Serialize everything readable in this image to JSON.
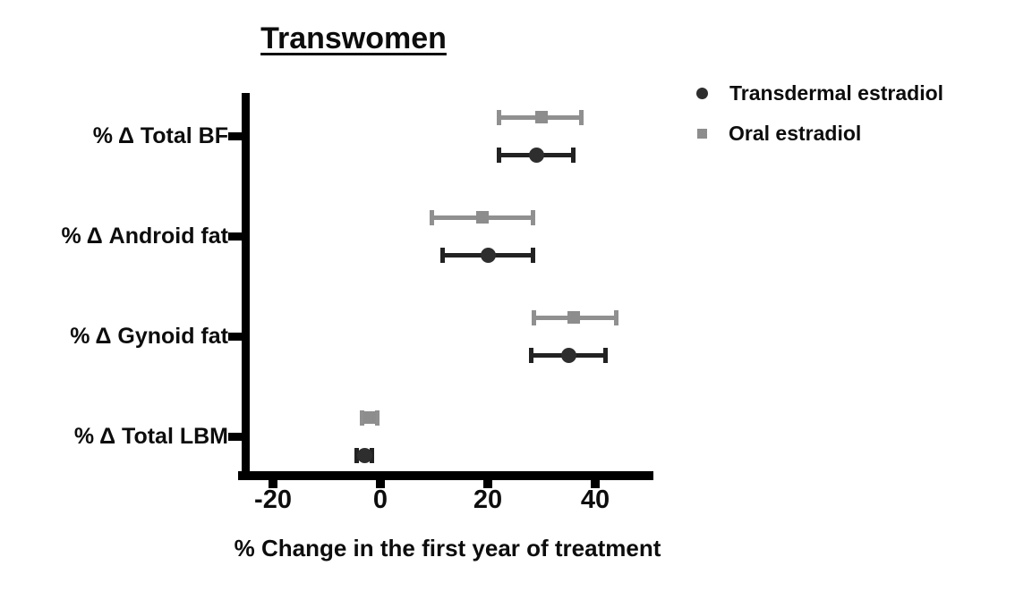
{
  "title": "Transwomen",
  "legend": [
    {
      "name": "Transdermal estradiol",
      "marker": "circle",
      "color": "#2e2e2e"
    },
    {
      "name": "Oral estradiol",
      "marker": "square",
      "color": "#8d8d8d"
    }
  ],
  "chart_data": {
    "type": "scatter",
    "subtype": "forest-plot-horizontal",
    "title": "Transwomen",
    "xlabel": "% Change in the first year of treatment",
    "categories": [
      "% Δ Total BF",
      "% Δ Android fat",
      "% Δ Gynoid fat",
      "% Δ Total LBM"
    ],
    "x_ticks": [
      -20,
      0,
      20,
      40
    ],
    "xlim": [
      -26,
      50
    ],
    "grid": false,
    "legend_position": "top-right",
    "series": [
      {
        "name": "Transdermal estradiol",
        "marker": "circle",
        "color": "#2e2e2e",
        "line_color": "#222222",
        "values": [
          29,
          20,
          35,
          -3
        ],
        "ci_low": [
          22,
          11.5,
          28,
          -4.5
        ],
        "ci_high": [
          36,
          28.5,
          42,
          -1.5
        ]
      },
      {
        "name": "Oral estradiol",
        "marker": "square",
        "color": "#8d8d8d",
        "line_color": "#909090",
        "values": [
          30,
          19,
          36,
          -2
        ],
        "ci_low": [
          22,
          9.5,
          28.5,
          -3.5
        ],
        "ci_high": [
          37.5,
          28.5,
          44,
          -0.5
        ]
      }
    ]
  }
}
